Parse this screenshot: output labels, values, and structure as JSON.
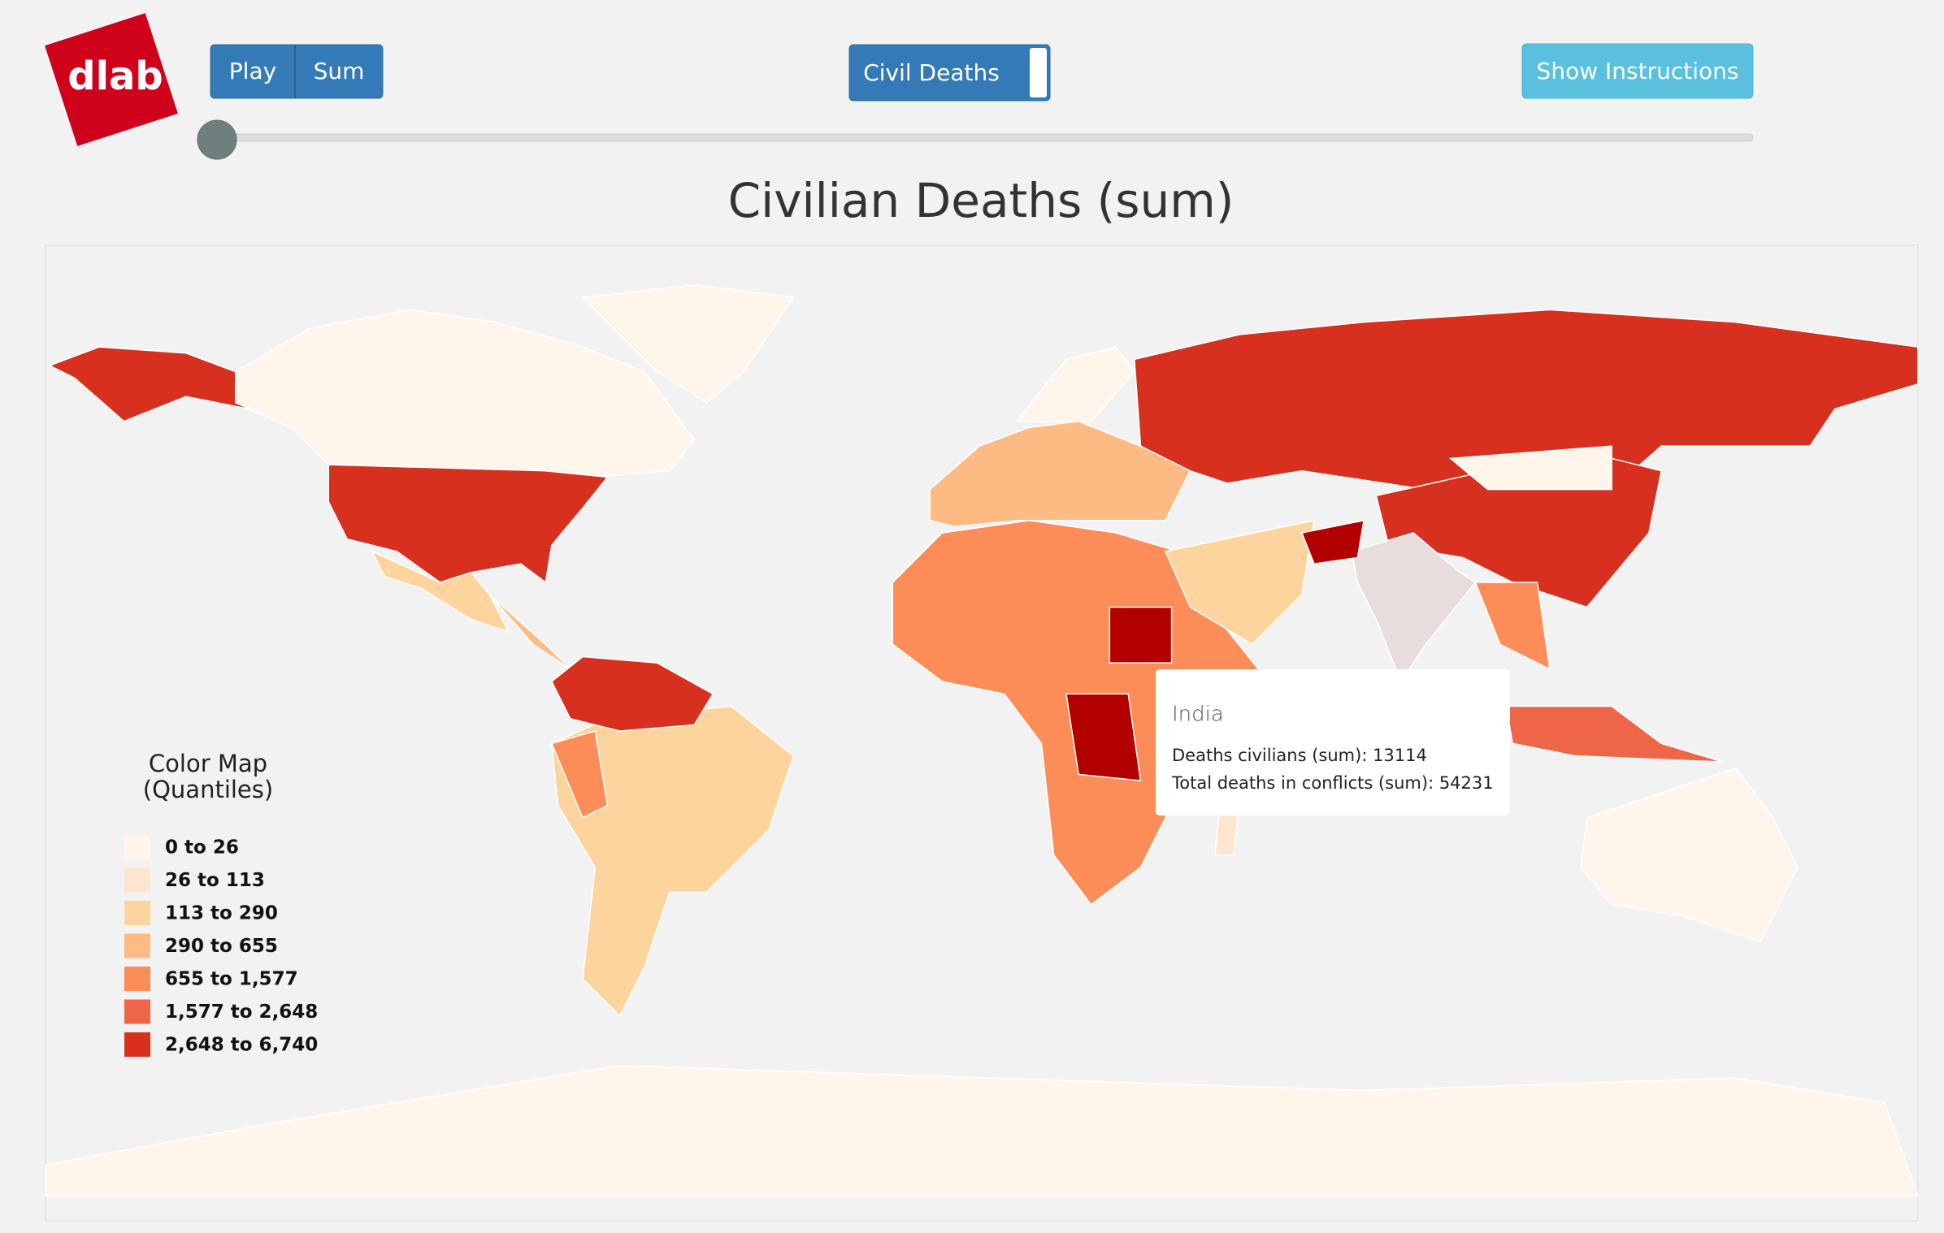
{
  "logo": "dlab",
  "controls": {
    "play": "Play",
    "sum": "Sum",
    "toggle": "Civil Deaths",
    "instructions": "Show Instructions"
  },
  "title": "Civilian Deaths (sum)",
  "legend": {
    "title": [
      "Color Map",
      "(Quantiles)"
    ],
    "items": [
      {
        "label": "0 to 26",
        "color": "#fff5eb"
      },
      {
        "label": "26 to 113",
        "color": "#fee6ce"
      },
      {
        "label": "113 to 290",
        "color": "#fdd49e"
      },
      {
        "label": "290 to 655",
        "color": "#fdbb84"
      },
      {
        "label": "655 to 1,577",
        "color": "#fc8d59"
      },
      {
        "label": "1,577 to 2,648",
        "color": "#ef6548"
      },
      {
        "label": "2,648 to 6,740",
        "color": "#d7301f"
      }
    ]
  },
  "tooltip": {
    "title": "India",
    "lines": [
      "Deaths civilians (sum): 13114",
      "Total deaths in conflicts (sum): 54231"
    ]
  }
}
